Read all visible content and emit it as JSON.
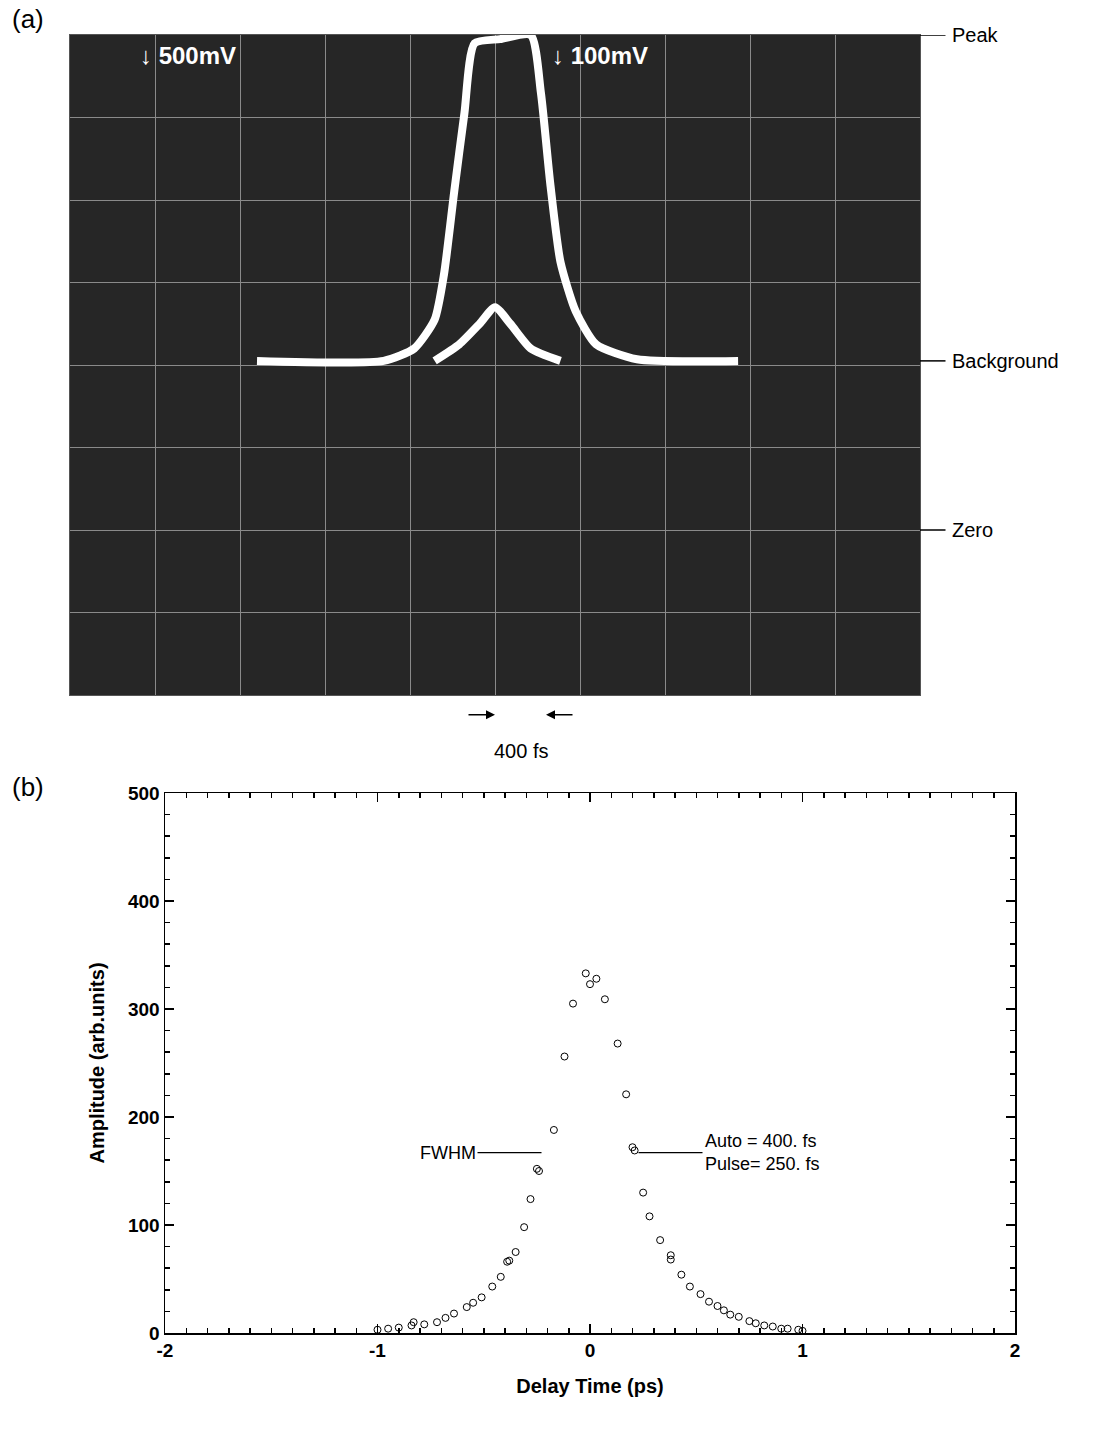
{
  "chart_data": [
    {
      "panel": "(a)",
      "type": "line",
      "tick_labels": false,
      "grid": true,
      "xlim": [
        0,
        10
      ],
      "ylim": [
        0,
        8
      ],
      "xticks": [
        0,
        1,
        2,
        3,
        4,
        5,
        6,
        7,
        8,
        9,
        10
      ],
      "yticks": [
        0,
        1,
        2,
        3,
        4,
        5,
        6,
        7,
        8
      ],
      "series": [
        {
          "color": "#ffffff",
          "x": [
            2.2,
            3.69,
            4.05,
            4.29,
            4.4,
            4.52,
            4.64,
            4.76,
            5.06,
            5.42,
            5.54,
            5.65,
            5.77,
            5.95,
            6.19,
            6.67,
            7.86
          ],
          "values": [
            4.05,
            4.05,
            4.2,
            4.55,
            5.1,
            6.1,
            7.05,
            7.9,
            7.95,
            8.0,
            7.3,
            6.2,
            5.25,
            4.65,
            4.25,
            4.07,
            4.05
          ]
        },
        {
          "color": "#ffffff",
          "x": [
            4.29,
            4.58,
            4.82,
            5.0,
            5.18,
            5.42,
            5.77
          ],
          "values": [
            4.05,
            4.25,
            4.5,
            4.7,
            4.5,
            4.2,
            4.05
          ]
        }
      ],
      "channel_labels": [
        {
          "text": "↓ 500mV",
          "x": 0.8,
          "y": 7.75
        },
        {
          "text": "↓ 100mV",
          "x": 5.65,
          "y": 7.75
        }
      ],
      "level_labels": [
        {
          "text": "Peak",
          "y": 8
        },
        {
          "text": "Background",
          "y": 4.05
        },
        {
          "text": "Zero",
          "y": 2
        }
      ],
      "span_label": {
        "text": "400 fs",
        "x": [
          5.0,
          5.6
        ]
      }
    },
    {
      "panel": "(b)",
      "type": "scatter",
      "marker": "open_circle",
      "color": "#000000",
      "grid": false,
      "x_label": "Delay Time (ps)",
      "y_label": "Amplitude (arb.units)",
      "xlim": [
        -2,
        2
      ],
      "ylim": [
        0,
        500
      ],
      "xticks": [
        -2,
        -1,
        0,
        1,
        2
      ],
      "yticks": [
        0,
        100,
        200,
        300,
        400,
        500
      ],
      "x": [
        -1.0,
        -0.95,
        -0.9,
        -0.84,
        -0.83,
        -0.78,
        -0.72,
        -0.68,
        -0.64,
        -0.58,
        -0.55,
        -0.51,
        -0.46,
        -0.42,
        -0.39,
        -0.38,
        -0.35,
        -0.31,
        -0.28,
        -0.25,
        -0.24,
        -0.17,
        -0.12,
        -0.08,
        -0.02,
        0.0,
        0.03,
        0.07,
        0.13,
        0.17,
        0.2,
        0.21,
        0.25,
        0.28,
        0.33,
        0.38,
        0.38,
        0.43,
        0.47,
        0.52,
        0.56,
        0.6,
        0.63,
        0.66,
        0.7,
        0.75,
        0.78,
        0.82,
        0.86,
        0.9,
        0.93,
        0.98,
        1.0
      ],
      "values": [
        3,
        4,
        5,
        7,
        10,
        8,
        10,
        14,
        18,
        24,
        28,
        33,
        43,
        52,
        66,
        67,
        75,
        98,
        124,
        152,
        150,
        188,
        256,
        305,
        333,
        323,
        328,
        309,
        268,
        221,
        172,
        169,
        130,
        108,
        86,
        72,
        68,
        54,
        43,
        36,
        29,
        25,
        21,
        17,
        15,
        11,
        9,
        7,
        6,
        4,
        4,
        3,
        2
      ],
      "annotations": [
        {
          "text": [
            "FWHM"
          ],
          "x": -0.2,
          "y": 167,
          "side": "left"
        },
        {
          "text": [
            "Auto = 400. fs",
            "Pulse= 250. fs"
          ],
          "x": 0.2,
          "y": 167,
          "side": "right"
        }
      ]
    }
  ]
}
